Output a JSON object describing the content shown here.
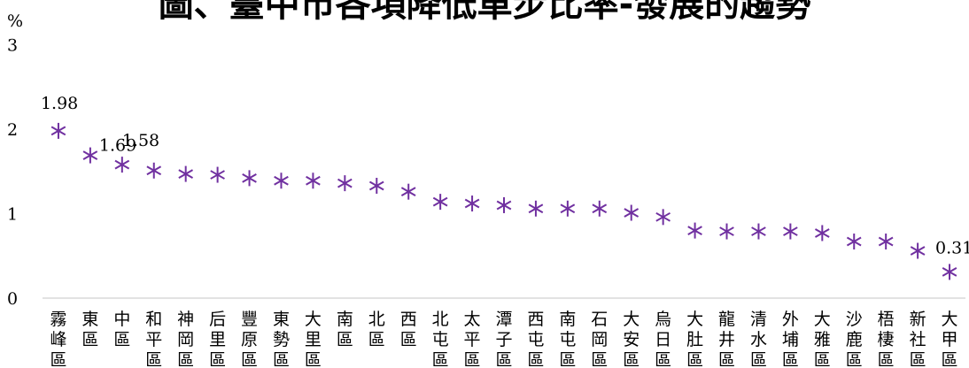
{
  "chart_data": {
    "type": "scatter",
    "title": "圖、臺中市各項降低車步比率-發展的趨勢",
    "ylabel": "%",
    "ylim": [
      0,
      3
    ],
    "y_ticks": [
      "0",
      "1",
      "2",
      "3"
    ],
    "grid": false,
    "legend": "none",
    "marker": "asterisk",
    "marker_color": "#7030A0",
    "categories": [
      "霧峰區",
      "東區",
      "中區",
      "和平區",
      "神岡區",
      "后里區",
      "豐原區",
      "東勢區",
      "大里區",
      "南區",
      "北區",
      "西區",
      "北屯區",
      "太平區",
      "潭子區",
      "西屯區",
      "南屯區",
      "石岡區",
      "大安區",
      "烏日區",
      "大肚區",
      "龍井區",
      "清水區",
      "外埔區",
      "大雅區",
      "沙鹿區",
      "梧棲區",
      "新社區",
      "大甲區"
    ],
    "values": [
      1.98,
      1.69,
      1.58,
      1.51,
      1.47,
      1.46,
      1.42,
      1.39,
      1.39,
      1.36,
      1.33,
      1.26,
      1.14,
      1.12,
      1.1,
      1.06,
      1.06,
      1.06,
      1.01,
      0.96,
      0.8,
      0.79,
      0.79,
      0.79,
      0.77,
      0.67,
      0.67,
      0.56,
      0.31
    ],
    "data_labels": [
      {
        "index": 0,
        "text": "1.98"
      },
      {
        "index": 1,
        "text": "1.69"
      },
      {
        "index": 2,
        "text": "1.58"
      },
      {
        "index": 28,
        "text": "0.31"
      }
    ]
  }
}
